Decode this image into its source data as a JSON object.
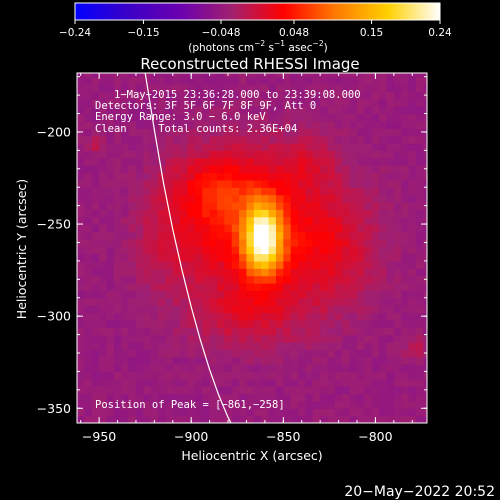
{
  "chart_data": {
    "type": "heatmap",
    "title": "Reconstructed RHESSI Image",
    "xlabel": "Heliocentric X (arcsec)",
    "ylabel": "Heliocentric Y (arcsec)",
    "xlim": [
      -962,
      -772
    ],
    "ylim": [
      -358,
      -168
    ],
    "x_ticks": [
      -950,
      -900,
      -850,
      -800
    ],
    "y_ticks": [
      -200,
      -250,
      -300,
      -350
    ],
    "x_tick_labels": [
      "−950",
      "−900",
      "−850",
      "−800"
    ],
    "y_tick_labels": [
      "−200",
      "−250",
      "−300",
      "−350"
    ],
    "colorbar": {
      "min": -0.24,
      "max": 0.24,
      "ticks": [
        -0.24,
        -0.15,
        -0.048,
        0.048,
        0.15,
        0.24
      ],
      "tick_labels": [
        "−0.24",
        "−0.15",
        "−0.048",
        "0.048",
        "0.15",
        "0.24"
      ],
      "label_main": "(photons cm",
      "label_exp1": "−2",
      "label_mid1": " s",
      "label_exp2": "−1",
      "label_mid2": " asec",
      "label_exp3": "−2",
      "label_end": ")",
      "colormap": [
        "#0000ff",
        "#3a00c8",
        "#6a00b0",
        "#a02070",
        "#ff0000",
        "#ff7a00",
        "#ffd000",
        "#ffffff"
      ]
    },
    "annotations": {
      "time": "1−May−2015 23:36:28.000 to 23:39:08.000",
      "detectors": "Detectors: 3F 5F 6F 7F 8F 9F, Att 0",
      "energy": "Energy Range: 3.0 − 6.0 keV",
      "method": "Clean     Total counts: 2.36E+04",
      "peak": "Position of Peak = [−861,−258]"
    },
    "peak": {
      "x": -861,
      "y": -258,
      "value": 0.24
    },
    "limb_curve_x": [
      -925,
      -920,
      -915,
      -910,
      -905,
      -900,
      -895,
      -890,
      -885,
      -880,
      -877
    ],
    "limb_curve_y": [
      -168,
      -199,
      -228,
      -253,
      -275,
      -295,
      -313,
      -329,
      -343,
      -355,
      -361
    ],
    "sources": [
      {
        "x": -861,
        "y": -258,
        "sx": 7,
        "sy": 13,
        "amp": 0.235
      },
      {
        "x": -870,
        "y": -252,
        "sx": 26,
        "sy": 28,
        "amp": 0.085
      },
      {
        "x": -888,
        "y": -230,
        "sx": 18,
        "sy": 14,
        "amp": 0.05
      },
      {
        "x": -825,
        "y": -262,
        "sx": 20,
        "sy": 24,
        "amp": 0.05
      },
      {
        "x": -870,
        "y": -300,
        "sx": 22,
        "sy": 12,
        "amp": 0.035
      },
      {
        "x": -837,
        "y": -215,
        "sx": 12,
        "sy": 10,
        "amp": 0.03
      },
      {
        "x": -915,
        "y": -260,
        "sx": 12,
        "sy": 18,
        "amp": 0.025
      },
      {
        "x": -952,
        "y": -207,
        "sx": 4,
        "sy": 4,
        "amp": 0.03
      },
      {
        "x": -778,
        "y": -318,
        "sx": 4,
        "sy": 4,
        "amp": 0.04
      }
    ],
    "background_level": -0.045,
    "pixel_size_arcsec": 4
  },
  "timestamp": "20−May−2022 20:52"
}
